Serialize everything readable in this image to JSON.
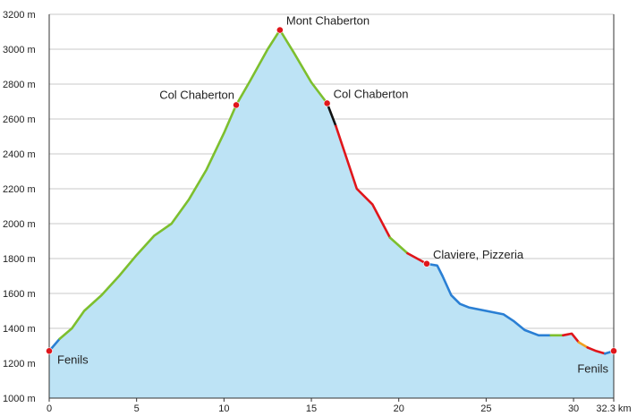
{
  "chart_data": {
    "type": "area",
    "title": "",
    "xlabel": "",
    "ylabel": "",
    "xlim": [
      0,
      32.3
    ],
    "ylim": [
      1000,
      3200
    ],
    "x_ticks": [
      0,
      5,
      10,
      15,
      20,
      25,
      30
    ],
    "x_tick_labels": [
      "0",
      "5",
      "10",
      "15",
      "20",
      "25",
      "30"
    ],
    "x_end_label": "32.3 km",
    "y_ticks": [
      1000,
      1200,
      1400,
      1600,
      1800,
      2000,
      2200,
      2400,
      2600,
      2800,
      3000,
      3200
    ],
    "y_tick_labels": [
      "1000 m",
      "1200 m",
      "1400 m",
      "1600 m",
      "1800 m",
      "2000 m",
      "2200 m",
      "2400 m",
      "2600 m",
      "2800 m",
      "3000 m",
      "3200 m"
    ],
    "grid": "horizontal",
    "fill_color": "#bde3f5",
    "profile": [
      {
        "x": 0,
        "y": 1270
      },
      {
        "x": 0.6,
        "y": 1340
      },
      {
        "x": 1.3,
        "y": 1400
      },
      {
        "x": 2,
        "y": 1500
      },
      {
        "x": 3,
        "y": 1590
      },
      {
        "x": 4,
        "y": 1700
      },
      {
        "x": 5,
        "y": 1820
      },
      {
        "x": 6,
        "y": 1930
      },
      {
        "x": 7,
        "y": 2000
      },
      {
        "x": 8,
        "y": 2140
      },
      {
        "x": 9,
        "y": 2310
      },
      {
        "x": 10,
        "y": 2520
      },
      {
        "x": 10.7,
        "y": 2680
      },
      {
        "x": 11.5,
        "y": 2820
      },
      {
        "x": 12.5,
        "y": 3000
      },
      {
        "x": 13.2,
        "y": 3110
      },
      {
        "x": 14,
        "y": 2980
      },
      {
        "x": 15,
        "y": 2810
      },
      {
        "x": 15.9,
        "y": 2690
      },
      {
        "x": 16.4,
        "y": 2560
      },
      {
        "x": 17,
        "y": 2380
      },
      {
        "x": 17.6,
        "y": 2200
      },
      {
        "x": 18.5,
        "y": 2110
      },
      {
        "x": 19.5,
        "y": 1920
      },
      {
        "x": 20.5,
        "y": 1830
      },
      {
        "x": 21.6,
        "y": 1770
      },
      {
        "x": 22.2,
        "y": 1760
      },
      {
        "x": 22.5,
        "y": 1700
      },
      {
        "x": 23,
        "y": 1590
      },
      {
        "x": 23.5,
        "y": 1540
      },
      {
        "x": 24,
        "y": 1520
      },
      {
        "x": 25,
        "y": 1500
      },
      {
        "x": 26,
        "y": 1480
      },
      {
        "x": 26.6,
        "y": 1440
      },
      {
        "x": 27.2,
        "y": 1390
      },
      {
        "x": 28,
        "y": 1360
      },
      {
        "x": 28.7,
        "y": 1360
      },
      {
        "x": 29.4,
        "y": 1360
      },
      {
        "x": 29.9,
        "y": 1370
      },
      {
        "x": 30.3,
        "y": 1320
      },
      {
        "x": 30.8,
        "y": 1290
      },
      {
        "x": 31.3,
        "y": 1270
      },
      {
        "x": 31.8,
        "y": 1255
      },
      {
        "x": 32.3,
        "y": 1270
      }
    ],
    "segments": [
      {
        "from_x": 0,
        "to_x": 0.6,
        "color": "#2a7fd4"
      },
      {
        "from_x": 0.6,
        "to_x": 15.9,
        "color": "#7dbf2e"
      },
      {
        "from_x": 15.9,
        "to_x": 16.4,
        "color": "#111111"
      },
      {
        "from_x": 16.4,
        "to_x": 19.5,
        "color": "#e0161b"
      },
      {
        "from_x": 19.5,
        "to_x": 20.5,
        "color": "#7dbf2e"
      },
      {
        "from_x": 20.5,
        "to_x": 21.6,
        "color": "#e0161b"
      },
      {
        "from_x": 21.6,
        "to_x": 28.7,
        "color": "#2a7fd4"
      },
      {
        "from_x": 28.7,
        "to_x": 29.4,
        "color": "#7dbf2e"
      },
      {
        "from_x": 29.4,
        "to_x": 30.3,
        "color": "#e0161b"
      },
      {
        "from_x": 30.3,
        "to_x": 30.8,
        "color": "#f0a020"
      },
      {
        "from_x": 30.8,
        "to_x": 31.8,
        "color": "#e0161b"
      },
      {
        "from_x": 31.8,
        "to_x": 32.3,
        "color": "#2a7fd4"
      }
    ],
    "waypoints": [
      {
        "name": "Fenils",
        "x": 0,
        "y": 1270,
        "label_side": "right-below"
      },
      {
        "name": "Col Chaberton",
        "x": 10.7,
        "y": 2680,
        "label_side": "left-above"
      },
      {
        "name": "Mont Chaberton",
        "x": 13.2,
        "y": 3110,
        "label_side": "right-above"
      },
      {
        "name": "Col Chaberton",
        "x": 15.9,
        "y": 2690,
        "label_side": "right-above"
      },
      {
        "name": "Claviere, Pizzeria",
        "x": 21.6,
        "y": 1770,
        "label_side": "right-above"
      },
      {
        "name": "Fenils",
        "x": 32.3,
        "y": 1270,
        "label_side": "left-below"
      }
    ]
  }
}
